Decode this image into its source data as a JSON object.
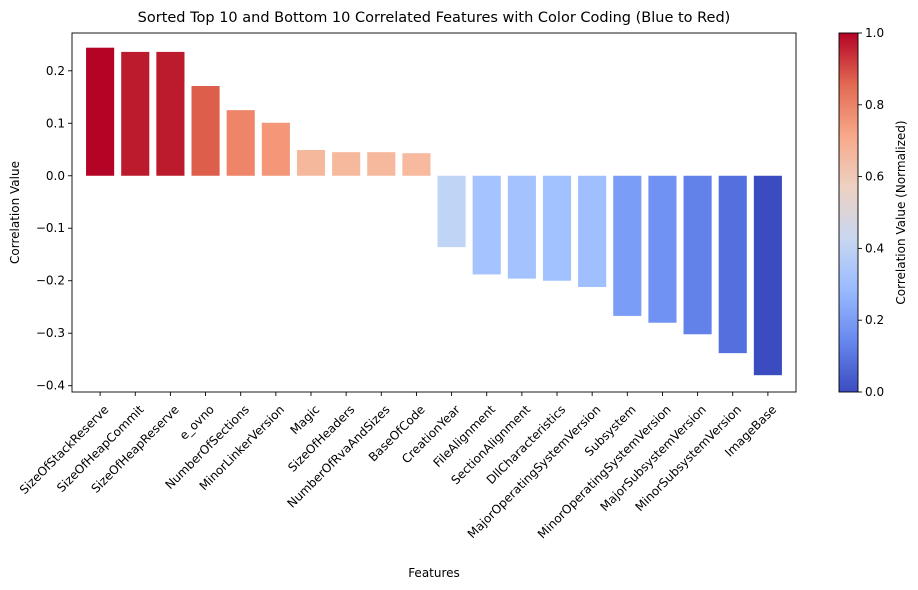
{
  "chart_data": {
    "type": "bar",
    "title": "Sorted Top 10 and Bottom 10 Correlated Features with Color Coding (Blue to Red)",
    "xlabel": "Features",
    "ylabel": "Correlation Value",
    "ylim": [
      -0.412,
      0.272
    ],
    "yticks": [
      -0.4,
      -0.3,
      -0.2,
      -0.1,
      0.0,
      0.1,
      0.2
    ],
    "ytick_labels": [
      "−0.4",
      "−0.3",
      "−0.2",
      "−0.1",
      "0.0",
      "0.1",
      "0.2"
    ],
    "grid": false,
    "categories": [
      "SizeOfStackReserve",
      "SizeOfHeapCommit",
      "SizeOfHeapReserve",
      "e_ovno",
      "NumberOfSections",
      "MinorLinkerVersion",
      "Magic",
      "SizeOfHeaders",
      "NumberOfRvaAndSizes",
      "BaseOfCode",
      "CreationYear",
      "FileAlignment",
      "SectionAlignment",
      "DllCharacteristics",
      "MajorOperatingSystemVersion",
      "Subsystem",
      "MinorOperatingSystemVersion",
      "MajorSubsystemVersion",
      "MinorSubsystemVersion",
      "ImageBase"
    ],
    "values": [
      0.244,
      0.236,
      0.236,
      0.171,
      0.125,
      0.101,
      0.049,
      0.045,
      0.045,
      0.043,
      -0.136,
      -0.188,
      -0.196,
      -0.2,
      -0.212,
      -0.267,
      -0.28,
      -0.302,
      -0.338,
      -0.38
    ],
    "colors": [
      "#b40426",
      "#bb1b2c",
      "#bb1b2c",
      "#dd5f4b",
      "#ee8468",
      "#f39778",
      "#f6b89c",
      "#f7b99e",
      "#f7b99e",
      "#f7ba9f",
      "#c0d4f5",
      "#a5c3fe",
      "#a3c2fe",
      "#a2c1ff",
      "#9fbfff",
      "#7a9df8",
      "#7093f3",
      "#6282ea",
      "#5470de",
      "#3b4cc0"
    ],
    "colorbar": {
      "label": "Correlation Value (Normalized)",
      "range": [
        0.0,
        1.0
      ],
      "ticks": [
        0.0,
        0.2,
        0.4,
        0.6,
        0.8,
        1.0
      ],
      "tick_labels": [
        "0.0",
        "0.2",
        "0.4",
        "0.6",
        "0.8",
        "1.0"
      ],
      "colormap": "coolwarm",
      "stops": [
        "#3b4cc0",
        "#6788ee",
        "#9abbff",
        "#c9d7f0",
        "#edd1c2",
        "#f7a889",
        "#e26952",
        "#b40426"
      ]
    }
  }
}
